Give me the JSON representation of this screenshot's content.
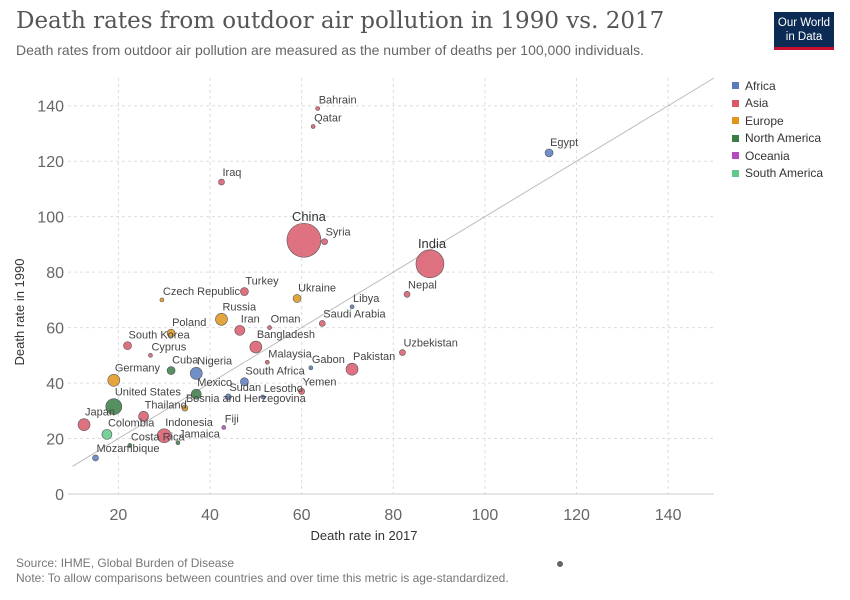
{
  "header": {
    "title": "Death rates from outdoor air pollution in 1990 vs. 2017",
    "subtitle": "Death rates from outdoor air pollution are measured as the number of deaths per 100,000 individuals."
  },
  "logo": {
    "line1": "Our World",
    "line2": "in Data"
  },
  "legend": [
    {
      "label": "Africa",
      "color": "#5b7bbf"
    },
    {
      "label": "Asia",
      "color": "#d9596b"
    },
    {
      "label": "Europe",
      "color": "#e0951c"
    },
    {
      "label": "North America",
      "color": "#3a7d44"
    },
    {
      "label": "Oceania",
      "color": "#b54bbf"
    },
    {
      "label": "South America",
      "color": "#5fc98a"
    }
  ],
  "footer": {
    "source": "Source: IHME, Global Burden of Disease",
    "note": "Note: To allow comparisons between countries and over time this metric is age-standardized."
  },
  "chart_data": {
    "type": "scatter",
    "xlabel": "Death rate in 2017",
    "ylabel": "Death rate in 1990",
    "xlim": [
      9,
      150
    ],
    "ylim": [
      0,
      150
    ],
    "xticks": [
      20,
      40,
      60,
      80,
      100,
      120,
      140
    ],
    "yticks": [
      0,
      20,
      40,
      60,
      80,
      100,
      120,
      140
    ],
    "grid": true,
    "diagonal_line": true,
    "legend_position": "right",
    "points": [
      {
        "label": "Bahrain",
        "x": 63.5,
        "y": 139,
        "region": "Asia",
        "r": 2
      },
      {
        "label": "Qatar",
        "x": 62.5,
        "y": 132.5,
        "region": "Asia",
        "r": 2
      },
      {
        "label": "Egypt",
        "x": 114,
        "y": 123,
        "region": "Africa",
        "r": 4
      },
      {
        "label": "Iraq",
        "x": 42.5,
        "y": 112.5,
        "region": "Asia",
        "r": 3
      },
      {
        "label": "China",
        "x": 60.5,
        "y": 91.5,
        "region": "Asia",
        "r": 17
      },
      {
        "label": "Syria",
        "x": 65,
        "y": 91,
        "region": "Asia",
        "r": 3
      },
      {
        "label": "India",
        "x": 88,
        "y": 83,
        "region": "Asia",
        "r": 14
      },
      {
        "label": "Nepal",
        "x": 83,
        "y": 72,
        "region": "Asia",
        "r": 3
      },
      {
        "label": "Libya",
        "x": 71,
        "y": 67.5,
        "region": "Africa",
        "r": 2
      },
      {
        "label": "Ukraine",
        "x": 59,
        "y": 70.5,
        "region": "Europe",
        "r": 4
      },
      {
        "label": "Turkey",
        "x": 47.5,
        "y": 73,
        "region": "Asia",
        "r": 4
      },
      {
        "label": "Czech Republic",
        "x": 29.5,
        "y": 70,
        "region": "Europe",
        "r": 2
      },
      {
        "label": "Russia",
        "x": 42.5,
        "y": 63,
        "region": "Europe",
        "r": 6
      },
      {
        "label": "Iran",
        "x": 46.5,
        "y": 59,
        "region": "Asia",
        "r": 5
      },
      {
        "label": "Oman",
        "x": 53,
        "y": 60,
        "region": "Asia",
        "r": 2
      },
      {
        "label": "Saudi Arabia",
        "x": 64.5,
        "y": 61.5,
        "region": "Asia",
        "r": 3
      },
      {
        "label": "Poland",
        "x": 31.5,
        "y": 58,
        "region": "Europe",
        "r": 4
      },
      {
        "label": "South Korea",
        "x": 22,
        "y": 53.5,
        "region": "Asia",
        "r": 4
      },
      {
        "label": "Bangladesh",
        "x": 50,
        "y": 53,
        "region": "Asia",
        "r": 6
      },
      {
        "label": "Uzbekistan",
        "x": 82,
        "y": 51,
        "region": "Asia",
        "r": 3
      },
      {
        "label": "Cyprus",
        "x": 27,
        "y": 50,
        "region": "Asia",
        "r": 2
      },
      {
        "label": "Malaysia",
        "x": 52.5,
        "y": 47.5,
        "region": "Asia",
        "r": 2
      },
      {
        "label": "Pakistan",
        "x": 71,
        "y": 45,
        "region": "Asia",
        "r": 6
      },
      {
        "label": "Gabon",
        "x": 62,
        "y": 45.5,
        "region": "Africa",
        "r": 2
      },
      {
        "label": "Cuba",
        "x": 31.5,
        "y": 44.5,
        "region": "North America",
        "r": 4
      },
      {
        "label": "Nigeria",
        "x": 37,
        "y": 43.5,
        "region": "Africa",
        "r": 6
      },
      {
        "label": "Germany",
        "x": 19,
        "y": 41,
        "region": "Europe",
        "r": 6
      },
      {
        "label": "South Africa",
        "x": 47.5,
        "y": 40.5,
        "region": "Africa",
        "r": 4
      },
      {
        "label": "Mexico",
        "x": 37,
        "y": 36,
        "region": "North America",
        "r": 5
      },
      {
        "label": "Sudan",
        "x": 44,
        "y": 35,
        "region": "Africa",
        "r": 3
      },
      {
        "label": "Yemen",
        "x": 60,
        "y": 37,
        "region": "Asia",
        "r": 3
      },
      {
        "label": "Lesotho",
        "x": 51.5,
        "y": 35,
        "region": "Africa",
        "r": 2
      },
      {
        "label": "United States",
        "x": 19,
        "y": 31.5,
        "region": "North America",
        "r": 8
      },
      {
        "label": "Thailand",
        "x": 25.5,
        "y": 28,
        "region": "Asia",
        "r": 5
      },
      {
        "label": "Bosnia and Herzegovina",
        "x": 34.5,
        "y": 31,
        "region": "Europe",
        "r": 3
      },
      {
        "label": "Japan",
        "x": 12.5,
        "y": 25,
        "region": "Asia",
        "r": 6
      },
      {
        "label": "Fiji",
        "x": 43,
        "y": 24,
        "region": "Oceania",
        "r": 2
      },
      {
        "label": "Colombia",
        "x": 17.5,
        "y": 21.5,
        "region": "South America",
        "r": 5
      },
      {
        "label": "Indonesia",
        "x": 30,
        "y": 21,
        "region": "Asia",
        "r": 7
      },
      {
        "label": "Jamaica",
        "x": 33,
        "y": 18.5,
        "region": "North America",
        "r": 2
      },
      {
        "label": "Costa Rica",
        "x": 22.5,
        "y": 17.5,
        "region": "North America",
        "r": 2
      },
      {
        "label": "Mozambique",
        "x": 15,
        "y": 13,
        "region": "Africa",
        "r": 3
      }
    ]
  }
}
